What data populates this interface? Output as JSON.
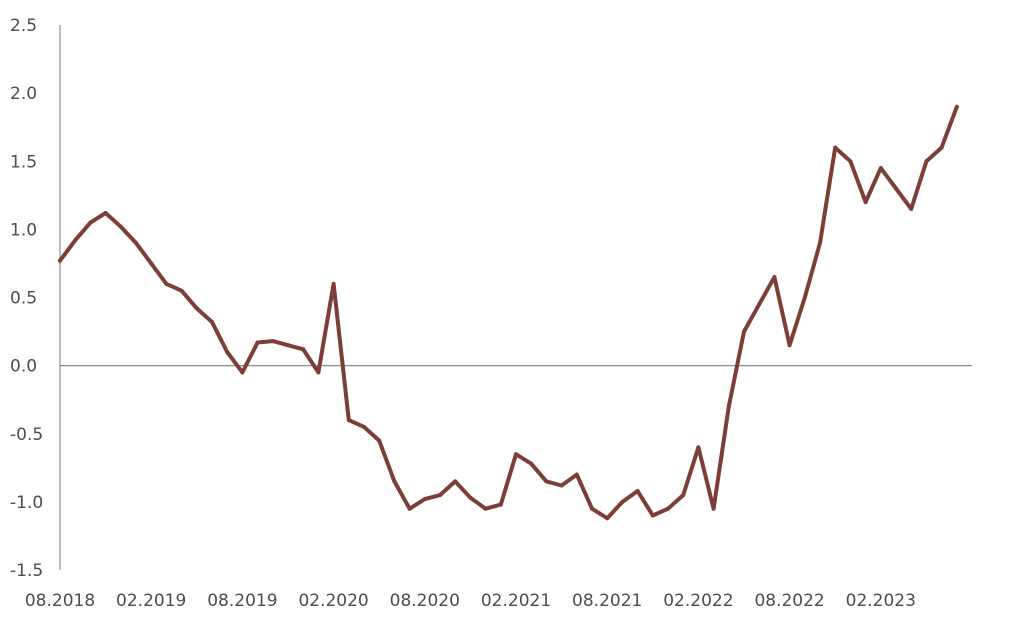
{
  "chart_data": {
    "type": "line",
    "title": "",
    "xlabel": "",
    "ylabel": "",
    "ylim": [
      -1.5,
      2.5
    ],
    "yticks": [
      "2.5",
      "2.0",
      "1.5",
      "1.0",
      "0.5",
      "0.0",
      "-0.5",
      "-1.0",
      "-1.5"
    ],
    "xticks": [
      "08.2018",
      "02.2019",
      "08.2019",
      "02.2020",
      "08.2020",
      "02.2021",
      "08.2021",
      "02.2022",
      "08.2022",
      "02.2023"
    ],
    "grid": false,
    "legend": "none",
    "series": [
      {
        "color": "#7b3f38",
        "x": [
          "08.2018",
          "09.2018",
          "10.2018",
          "11.2018",
          "12.2018",
          "01.2019",
          "02.2019",
          "03.2019",
          "04.2019",
          "05.2019",
          "06.2019",
          "07.2019",
          "08.2019",
          "09.2019",
          "10.2019",
          "11.2019",
          "12.2019",
          "01.2020",
          "02.2020",
          "03.2020",
          "04.2020",
          "05.2020",
          "06.2020",
          "07.2020",
          "08.2020",
          "09.2020",
          "10.2020",
          "11.2020",
          "12.2020",
          "01.2021",
          "02.2021",
          "03.2021",
          "04.2021",
          "05.2021",
          "06.2021",
          "07.2021",
          "08.2021",
          "09.2021",
          "10.2021",
          "11.2021",
          "12.2021",
          "01.2022",
          "02.2022",
          "03.2022",
          "04.2022",
          "05.2022",
          "06.2022",
          "07.2022",
          "08.2022",
          "09.2022",
          "10.2022",
          "11.2022",
          "12.2022",
          "01.2023",
          "02.2023",
          "03.2023",
          "04.2023",
          "05.2023",
          "06.2023",
          "07.2023"
        ],
        "values": [
          0.77,
          0.92,
          1.05,
          1.12,
          1.02,
          0.9,
          0.75,
          0.6,
          0.55,
          0.42,
          0.32,
          0.1,
          -0.05,
          0.17,
          0.18,
          0.15,
          0.12,
          -0.05,
          0.6,
          -0.4,
          -0.45,
          -0.55,
          -0.85,
          -1.05,
          -0.98,
          -0.95,
          -0.85,
          -0.97,
          -1.05,
          -1.02,
          -0.65,
          -0.72,
          -0.85,
          -0.88,
          -0.8,
          -1.05,
          -1.12,
          -1.0,
          -0.92,
          -1.1,
          -1.05,
          -0.95,
          -0.6,
          -1.05,
          -0.3,
          0.25,
          0.45,
          0.65,
          0.15,
          0.5,
          0.9,
          1.6,
          1.5,
          1.2,
          1.45,
          1.3,
          1.15,
          1.5,
          1.6,
          1.9
        ]
      }
    ]
  }
}
